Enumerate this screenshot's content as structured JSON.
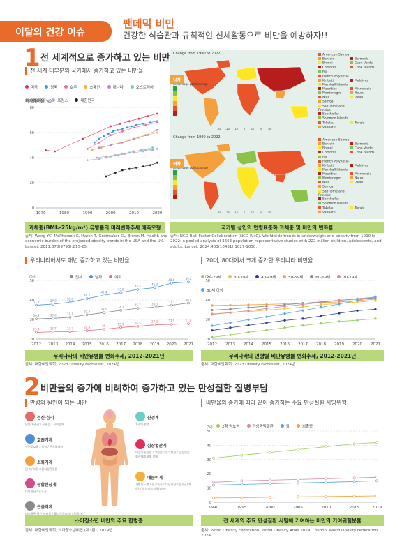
{
  "header": {
    "badge": "이달의 건강 이슈",
    "title": "팬데믹 비만",
    "subtitle": "건강한 식습관과 규칙적인 신체활동으로 비만을 예방하자!!"
  },
  "section1": {
    "num": "1",
    "title": "전 세계적으로 증가하고 있는 비만",
    "subhead": "전 세계 대부분의 국가에서 증가하고 있는 비만율",
    "chart1": {
      "legend": [
        {
          "name": "미국",
          "color": "#e0305a"
        },
        {
          "name": "영국",
          "color": "#3a9ad9"
        },
        {
          "name": "호주",
          "color": "#e86aa0"
        },
        {
          "name": "스페인",
          "color": "#f4b13e"
        },
        {
          "name": "캐나다",
          "color": "#b58ad2"
        },
        {
          "name": "오스트리아",
          "color": "#6ccfc6"
        },
        {
          "name": "이탈리아",
          "color": "#d8a3a3"
        },
        {
          "name": "프랑스",
          "color": "#a7b0d9"
        },
        {
          "name": "대한민국",
          "color": "#222222"
        }
      ],
      "ylabel": "과체중비율(%)",
      "caption": "과체중(BMI≥25kg/m²) 유병률의 미래변화추세 예측모형",
      "source": "출처: Wang YC, McPherson K, Marsh T, Gortmaker SL, Brown M. Health and economic burden of the projected obesity trends in the USA and the UK. Lancet. 2011;378(9793):815-25."
    },
    "maps": {
      "title_top": "Change from 1990 to 2022",
      "title_bottom": "Change from 1990 to 2022",
      "label_male": "남자",
      "label_female": "여자",
      "legend_title": "Percentage point change",
      "legend_ticks": [
        "50",
        "40",
        "30",
        "20",
        "10",
        "0",
        "-10"
      ],
      "scale_ticks": [
        "-30",
        "-20",
        "-10",
        "0",
        "10",
        "20",
        "30"
      ],
      "islands_col1": [
        "American Samoa",
        "Bahrain",
        "Brunei",
        "Comoros",
        "Fiji",
        "French Polynesia",
        "Kiribati",
        "Marshall Islands",
        "Mauritius",
        "Montenegro",
        "Niue",
        "Samoa",
        "São Tomé and Príncipe",
        "Seychelles",
        "Solomon Islands",
        "Tokelau",
        "Vanuatu"
      ],
      "islands_col2": [
        "",
        "Bermuda",
        "Cabo Verde",
        "Cook Islands",
        "",
        "",
        "Maldives",
        "",
        "Micronesia",
        "Nauru",
        "Palau",
        "",
        "",
        "",
        "",
        "Tuvalu",
        ""
      ],
      "caption": "국가별 성인의 연령표준화 과체중 및 비만의 변화율",
      "source": "출처: NCD Risk Factor Collaboration (NCD-RisC). Worldwide trends in underweight and obesity from 1990 to 2022: a pooled analysis of 3663 population-representative studies with 222 million children, adolescents, and adults. Lancet. 2024;403(10431):1027-1050."
    },
    "korea_gender": {
      "subhead": "우리나라에서도 매년 증가하고 있는 비만율",
      "legend": [
        {
          "name": "전체",
          "color": "#888888"
        },
        {
          "name": "남자",
          "color": "#4d8fd6"
        },
        {
          "name": "여자",
          "color": "#e86a7e"
        }
      ],
      "caption": "우리나라의 비만유병률 변화추세, 2012-2021년",
      "source": "출처: 대한비만학회, 2023 Obesity Factsheet, 2024년."
    },
    "korea_age": {
      "subhead": "20대, 80대에서 크게 증가한 우리나라 비만율",
      "legend": [
        {
          "name": "20-29세",
          "color": "#9ccc5a"
        },
        {
          "name": "30-39세",
          "color": "#e8c540"
        },
        {
          "name": "40-49세",
          "color": "#2b3a8c"
        },
        {
          "name": "50-59세",
          "color": "#f4a03c"
        },
        {
          "name": "60-69세",
          "color": "#8a8a8a"
        },
        {
          "name": "70-79세",
          "color": "#d48aa8"
        },
        {
          "name": "80세 이상",
          "color": "#5aa6e0"
        }
      ],
      "caption": "우리나라의 연령별 비만유병률 변화추세, 2012-2021년",
      "source": "출처: 대한비만학회, 2023 Obesity Factsheet, 2024년."
    }
  },
  "section2": {
    "num": "2",
    "title": "비만율의 증가에 비례하여 증가하고 있는 만성질환 질병부담",
    "left": {
      "subhead": "만병의 원인이 되는 비만",
      "organs_left": [
        {
          "name": "정신·심리",
          "desc": "낮은 자존감 / 우울증 / 식이장애",
          "color": "#e36b6b"
        },
        {
          "name": "호흡기계",
          "desc": "수면무호흡 / 천식 / 운동불내성",
          "color": "#4d8fd6"
        },
        {
          "name": "소화기계",
          "desc": "담석 / 비알코올지방간질환",
          "color": "#f4a03c"
        },
        {
          "name": "광합신장계",
          "desc": "다낭성난소증후군",
          "color": "#d64a8a"
        },
        {
          "name": "근골격계",
          "desc": "대퇴골두 골단 분리증 / 블라운트씨 병 / 평평 발 / 발목 염좌",
          "color": "#8a8a8a"
        }
      ],
      "organs_right": [
        {
          "name": "신경계",
          "desc": "가성뇌종양",
          "color": "#6ccfc6"
        },
        {
          "name": "심장혈관계",
          "desc": "이상지질혈증 / 고혈압 / 응고항진 / 만성염증 / 혈관내피세포 장애",
          "color": "#e0305a"
        },
        {
          "name": "내분비계",
          "desc": "2형 당뇨병 / 성조숙증 / 다낭성난소증후군(여아) / 생식기능저하(남아)",
          "color": "#f4b13e"
        }
      ],
      "caption": "소아청소년 비만의 주요 합병증",
      "source": "출처: 대한비만학회, 소아청소년비만 (제3판), 2019년."
    },
    "right": {
      "subhead": "비만율의 증가에 따라 같이 증가하는 주요 만성질환 사망위험",
      "legend": [
        {
          "name": "2형 당뇨병",
          "color": "#9ccc5a"
        },
        {
          "name": "관상동맥질환",
          "color": "#d48aa8"
        },
        {
          "name": "암",
          "color": "#5aa6e0"
        },
        {
          "name": "뇌졸중",
          "color": "#f4a03c"
        }
      ],
      "caption": "전 세계의 주요 만성질환 사망에 기여하는 비만의 기여위험분율",
      "source": "출처: World Obesity Federation. World Obesity Atlas 2024. London: World Obesity Federation, 2024."
    }
  },
  "chart_data": [
    {
      "type": "line",
      "title": "",
      "ylabel": "과체중비율(%)",
      "x": [
        1970,
        1980,
        1990,
        2000,
        2010,
        2020
      ],
      "ylim": [
        0,
        80
      ],
      "yticks": [
        0,
        20,
        40,
        60,
        80
      ],
      "series": [
        {
          "name": "미국",
          "color": "#e0305a",
          "x": [
            1972,
            1976,
            1988,
            2000,
            2004,
            2008,
            2012,
            2016,
            2020
          ],
          "values": [
            46,
            45,
            55,
            65,
            67,
            69,
            71,
            73,
            75
          ]
        },
        {
          "name": "영국",
          "color": "#3a9ad9",
          "x": [
            1993,
            1995,
            1997,
            1999,
            2001,
            2003,
            2005,
            2007,
            2009,
            2011,
            2014,
            2017,
            2020
          ],
          "values": [
            52,
            55,
            57,
            59,
            61,
            62,
            63,
            64,
            65,
            66,
            67,
            68,
            69
          ]
        },
        {
          "name": "호주",
          "color": "#e86aa0",
          "x": [
            1990,
            1995,
            2000,
            2005,
            2010,
            2015,
            2020
          ],
          "values": [
            47,
            52,
            58,
            61,
            64,
            66,
            68
          ]
        },
        {
          "name": "스페인",
          "color": "#f4b13e",
          "x": [
            1992,
            1996,
            2000,
            2004,
            2008,
            2012,
            2016,
            2020
          ],
          "values": [
            46,
            48,
            50,
            52,
            54,
            56,
            58,
            60
          ]
        },
        {
          "name": "캐나다",
          "color": "#b58ad2",
          "x": [
            1995,
            2000,
            2005,
            2010,
            2015,
            2020
          ],
          "values": [
            48,
            50,
            52,
            55,
            58,
            62
          ]
        },
        {
          "name": "오스트리아",
          "color": "#6ccfc6",
          "x": [
            1998,
            2003,
            2008,
            2013,
            2018
          ],
          "values": [
            40,
            42,
            44,
            46,
            48
          ]
        },
        {
          "name": "이탈리아",
          "color": "#d8a3a3",
          "x": [
            1994,
            1998,
            2002,
            2006,
            2010,
            2014,
            2018
          ],
          "values": [
            40,
            41,
            42,
            43,
            44,
            45,
            46
          ]
        },
        {
          "name": "프랑스",
          "color": "#a7b0d9",
          "x": [
            1990,
            1995,
            2000,
            2005,
            2010,
            2015,
            2020
          ],
          "values": [
            38,
            39,
            41,
            43,
            45,
            46,
            47
          ]
        },
        {
          "name": "대한민국",
          "color": "#222222",
          "x": [
            1998,
            2002,
            2005,
            2008,
            2011,
            2014,
            2017,
            2020
          ],
          "values": [
            25,
            28,
            30,
            31,
            32,
            33,
            34,
            36
          ]
        }
      ]
    },
    {
      "type": "line",
      "title": "",
      "ylabel": "(%)",
      "x": [
        2012,
        2013,
        2014,
        2015,
        2016,
        2017,
        2018,
        2019,
        2020,
        2021
      ],
      "ylim": [
        20,
        50
      ],
      "yticks": [
        20,
        30,
        40,
        50
      ],
      "series": [
        {
          "name": "전체",
          "color": "#888888",
          "values": [
            30.3,
            30.6,
            31.1,
            32.4,
            33.5,
            34.7,
            35.7,
            36.3,
            37.3,
            38.4
          ]
        },
        {
          "name": "남자",
          "color": "#4d8fd6",
          "values": [
            37.3,
            37.9,
            38.8,
            40.7,
            42.4,
            43.8,
            45.4,
            46.3,
            48.6,
            49.2
          ]
        },
        {
          "name": "여자",
          "color": "#e86a7e",
          "values": [
            23.4,
            23.7,
            23.7,
            24.3,
            25.0,
            25.9,
            26.5,
            27.3,
            27.5,
            27.8
          ]
        }
      ]
    },
    {
      "type": "line",
      "title": "",
      "ylabel": "(%)",
      "x": [
        2012,
        2013,
        2014,
        2015,
        2016,
        2017,
        2018,
        2019,
        2020,
        2021
      ],
      "ylim": [
        20,
        50
      ],
      "yticks": [
        20,
        30,
        40,
        50
      ],
      "series": [
        {
          "name": "20-29세",
          "color": "#9ccc5a",
          "values": [
            20.9,
            22.0,
            23.5,
            24.5,
            25.8,
            26.9,
            28.0,
            29.0,
            29.6,
            30.4
          ]
        },
        {
          "name": "30-39세",
          "color": "#e8c540",
          "values": [
            32.9,
            33.5,
            34.0,
            34.8,
            35.5,
            36.4,
            37.5,
            38.2,
            38.9,
            39.6
          ]
        },
        {
          "name": "40-49세",
          "color": "#2b3a8c",
          "values": [
            24.4,
            25.8,
            27.0,
            28.3,
            29.5,
            30.4,
            31.8,
            33.2,
            34.5,
            35.2
          ]
        },
        {
          "name": "50-59세",
          "color": "#f4a03c",
          "values": [
            37.2,
            37.3,
            37.5,
            37.7,
            38.0,
            38.3,
            38.6,
            39.0,
            39.6,
            40.4
          ]
        },
        {
          "name": "60-69세",
          "color": "#8a8a8a",
          "values": [
            34.8,
            35.3,
            36.1,
            36.8,
            37.5,
            38.3,
            39.0,
            39.8,
            40.4,
            41.0
          ]
        },
        {
          "name": "70-79세",
          "color": "#d48aa8",
          "values": [
            32.6,
            33.5,
            34.5,
            35.6,
            36.7,
            37.7,
            38.7,
            39.8,
            40.7,
            41.4
          ]
        },
        {
          "name": "80세 이상",
          "color": "#5aa6e0",
          "values": [
            26.8,
            28.4,
            29.9,
            31.4,
            33.0,
            34.6,
            36.2,
            37.9,
            39.8,
            41.7
          ]
        }
      ]
    },
    {
      "type": "line",
      "title": "",
      "ylabel": "(%)",
      "x": [
        1990,
        1995,
        2000,
        2005,
        2010,
        2015,
        2019
      ],
      "ylim": [
        0,
        50
      ],
      "yticks": [
        0,
        10,
        20,
        30,
        40,
        50
      ],
      "series": [
        {
          "name": "2형 당뇨병",
          "color": "#9ccc5a",
          "values": [
            31,
            33,
            35,
            37,
            39,
            41,
            42
          ]
        },
        {
          "name": "관상동맥질환",
          "color": "#d48aa8",
          "values": [
            14,
            15,
            15.5,
            16,
            16.5,
            17,
            17.5
          ]
        },
        {
          "name": "암",
          "color": "#5aa6e0",
          "values": [
            12,
            12.5,
            13,
            13.5,
            14,
            14.5,
            15
          ]
        },
        {
          "name": "뇌졸중",
          "color": "#f4a03c",
          "values": [
            3,
            3.2,
            3.5,
            3.8,
            4.0,
            4.2,
            4.4
          ]
        }
      ]
    }
  ]
}
